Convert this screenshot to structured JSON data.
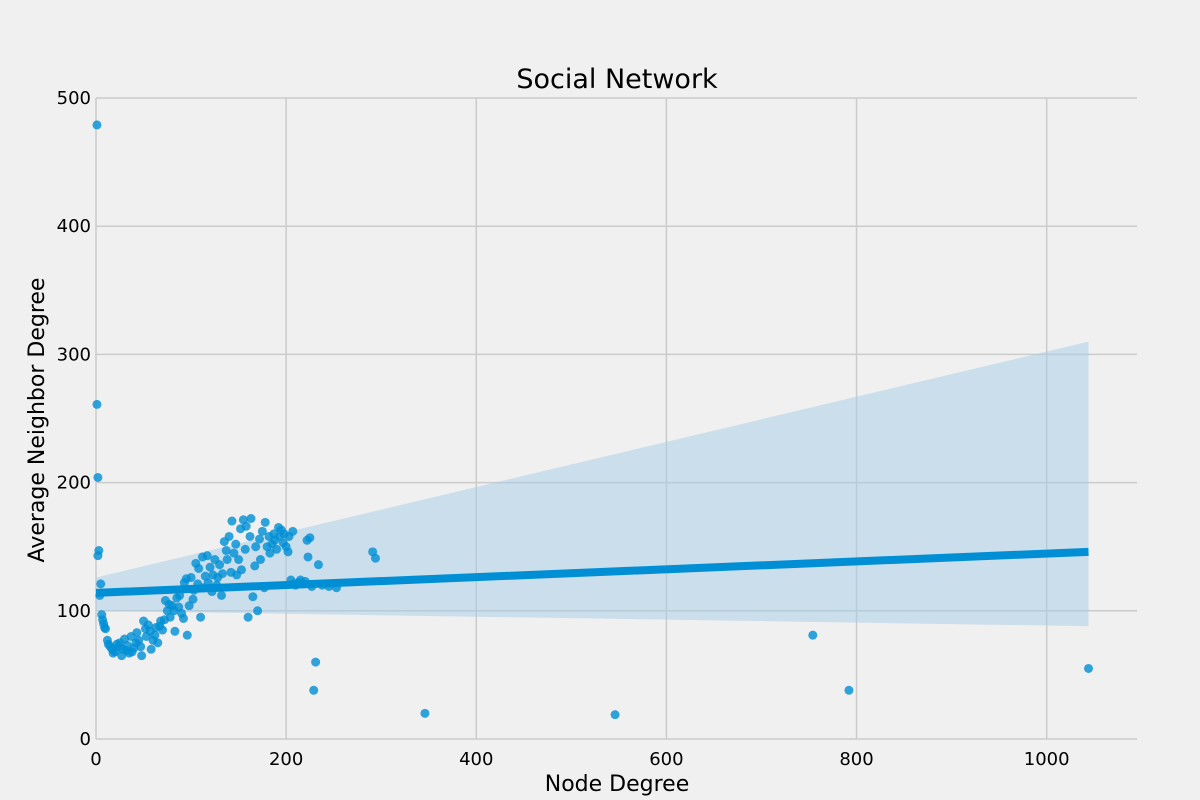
{
  "chart_data": {
    "type": "scatter",
    "title": "Social Network",
    "xlabel": "Node Degree",
    "ylabel": "Average Neighbor Degree",
    "xlim": [
      0,
      1095
    ],
    "ylim": [
      0,
      500
    ],
    "xticks": [
      0,
      200,
      400,
      600,
      800,
      1000
    ],
    "yticks": [
      0,
      100,
      200,
      300,
      400,
      500
    ],
    "grid": true,
    "colors": {
      "background": "#f0f0f0",
      "grid": "#cbcbcb",
      "points": "#008fd5",
      "regression_line": "#008fd5",
      "confidence_band": "#a6cbe8"
    },
    "series": [
      {
        "points": [
          [
            1,
            479
          ],
          [
            1,
            261
          ],
          [
            2,
            204
          ],
          [
            3,
            147
          ],
          [
            2,
            143
          ],
          [
            5,
            121
          ],
          [
            4,
            112
          ],
          [
            6,
            97
          ],
          [
            7,
            93
          ],
          [
            8,
            90
          ],
          [
            9,
            87
          ],
          [
            10,
            86
          ],
          [
            12,
            77
          ],
          [
            13,
            74
          ],
          [
            15,
            72
          ],
          [
            17,
            70
          ],
          [
            18,
            67
          ],
          [
            20,
            68
          ],
          [
            22,
            74
          ],
          [
            24,
            72
          ],
          [
            25,
            75
          ],
          [
            27,
            65
          ],
          [
            28,
            70
          ],
          [
            30,
            78
          ],
          [
            32,
            69
          ],
          [
            33,
            73
          ],
          [
            35,
            67
          ],
          [
            37,
            80
          ],
          [
            38,
            68
          ],
          [
            40,
            71
          ],
          [
            42,
            75
          ],
          [
            43,
            83
          ],
          [
            45,
            77
          ],
          [
            47,
            72
          ],
          [
            48,
            65
          ],
          [
            50,
            92
          ],
          [
            52,
            86
          ],
          [
            53,
            80
          ],
          [
            55,
            89
          ],
          [
            57,
            84
          ],
          [
            58,
            70
          ],
          [
            60,
            77
          ],
          [
            62,
            81
          ],
          [
            63,
            87
          ],
          [
            65,
            75
          ],
          [
            67,
            88
          ],
          [
            68,
            92
          ],
          [
            70,
            85
          ],
          [
            72,
            93
          ],
          [
            73,
            108
          ],
          [
            75,
            100
          ],
          [
            77,
            105
          ],
          [
            78,
            95
          ],
          [
            80,
            104
          ],
          [
            82,
            100
          ],
          [
            83,
            84
          ],
          [
            85,
            110
          ],
          [
            87,
            103
          ],
          [
            88,
            112
          ],
          [
            90,
            98
          ],
          [
            92,
            94
          ],
          [
            93,
            122
          ],
          [
            95,
            125
          ],
          [
            96,
            81
          ],
          [
            98,
            104
          ],
          [
            100,
            126
          ],
          [
            102,
            109
          ],
          [
            103,
            116
          ],
          [
            105,
            137
          ],
          [
            107,
            121
          ],
          [
            108,
            133
          ],
          [
            110,
            95
          ],
          [
            112,
            142
          ],
          [
            113,
            118
          ],
          [
            115,
            127
          ],
          [
            117,
            143
          ],
          [
            118,
            122
          ],
          [
            120,
            134
          ],
          [
            122,
            115
          ],
          [
            123,
            128
          ],
          [
            125,
            140
          ],
          [
            127,
            120
          ],
          [
            128,
            126
          ],
          [
            130,
            136
          ],
          [
            132,
            112
          ],
          [
            133,
            129
          ],
          [
            135,
            154
          ],
          [
            137,
            147
          ],
          [
            138,
            140
          ],
          [
            140,
            158
          ],
          [
            142,
            130
          ],
          [
            143,
            170
          ],
          [
            145,
            145
          ],
          [
            147,
            152
          ],
          [
            148,
            128
          ],
          [
            150,
            140
          ],
          [
            152,
            164
          ],
          [
            153,
            132
          ],
          [
            155,
            171
          ],
          [
            157,
            148
          ],
          [
            158,
            166
          ],
          [
            160,
            95
          ],
          [
            162,
            158
          ],
          [
            163,
            172
          ],
          [
            165,
            111
          ],
          [
            167,
            135
          ],
          [
            168,
            150
          ],
          [
            170,
            100
          ],
          [
            172,
            156
          ],
          [
            173,
            140
          ],
          [
            175,
            162
          ],
          [
            177,
            118
          ],
          [
            178,
            169
          ],
          [
            180,
            150
          ],
          [
            182,
            158
          ],
          [
            183,
            145
          ],
          [
            185,
            152
          ],
          [
            187,
            160
          ],
          [
            188,
            155
          ],
          [
            190,
            148
          ],
          [
            192,
            165
          ],
          [
            193,
            158
          ],
          [
            195,
            163
          ],
          [
            197,
            153
          ],
          [
            198,
            160
          ],
          [
            200,
            150
          ],
          [
            202,
            146
          ],
          [
            203,
            158
          ],
          [
            205,
            124
          ],
          [
            207,
            162
          ],
          [
            208,
            121
          ],
          [
            210,
            120
          ],
          [
            213,
            122
          ],
          [
            215,
            124
          ],
          [
            218,
            121
          ],
          [
            220,
            123
          ],
          [
            222,
            155
          ],
          [
            223,
            142
          ],
          [
            225,
            157
          ],
          [
            227,
            119
          ],
          [
            229,
            38
          ],
          [
            231,
            60
          ],
          [
            234,
            136
          ],
          [
            238,
            120
          ],
          [
            245,
            119
          ],
          [
            253,
            118
          ],
          [
            291,
            146
          ],
          [
            294,
            141
          ],
          [
            346,
            20
          ],
          [
            546,
            19
          ],
          [
            754,
            81
          ],
          [
            792,
            38
          ],
          [
            1044,
            55
          ]
        ]
      }
    ],
    "regression": {
      "x_range": [
        0,
        1044
      ],
      "line": [
        114,
        146
      ],
      "ci_lower": [
        100,
        88
      ],
      "ci_upper": [
        126,
        310
      ]
    }
  }
}
